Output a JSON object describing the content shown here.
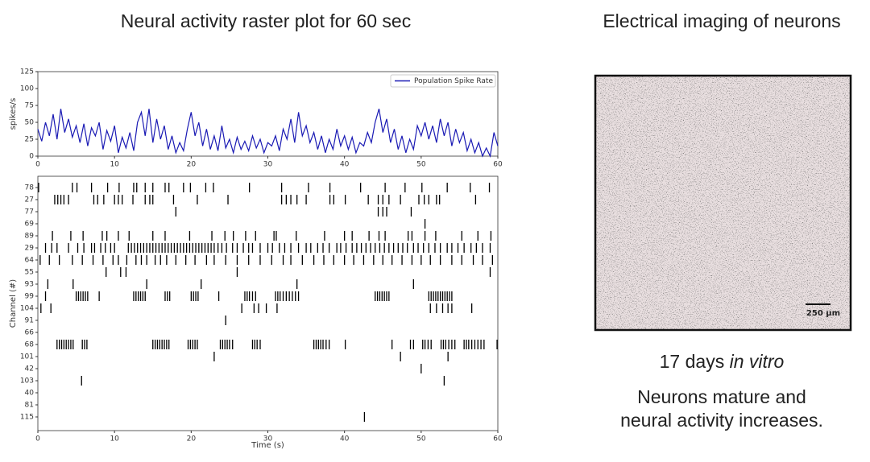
{
  "slide": {
    "left_title": "Neural activity raster plot for 60 sec",
    "right_title": "Electrical imaging of neurons",
    "caption_days": "17 days",
    "caption_italic": "in vitro",
    "note": [
      "Neurons mature and",
      "neural activity increases."
    ],
    "scale_bar": "250 μm"
  },
  "chart_data": [
    {
      "type": "line",
      "ylabel": "spikes/s",
      "legend": "upper right",
      "xlim": [
        0,
        60
      ],
      "ylim": [
        0,
        125
      ],
      "xticks": [
        0,
        10,
        20,
        30,
        40,
        50,
        60
      ],
      "yticks": [
        0,
        25,
        50,
        75,
        100,
        125
      ],
      "x": [
        0,
        0.5,
        1,
        1.5,
        2,
        2.5,
        3,
        3.5,
        4,
        4.5,
        5,
        5.5,
        6,
        6.5,
        7,
        7.5,
        8,
        8.5,
        9,
        9.5,
        10,
        10.5,
        11,
        11.5,
        12,
        12.5,
        13,
        13.5,
        14,
        14.5,
        15,
        15.5,
        16,
        16.5,
        17,
        17.5,
        18,
        18.5,
        19,
        19.5,
        20,
        20.5,
        21,
        21.5,
        22,
        22.5,
        23,
        23.5,
        24,
        24.5,
        25,
        25.5,
        26,
        26.5,
        27,
        27.5,
        28,
        28.5,
        29,
        29.5,
        30,
        30.5,
        31,
        31.5,
        32,
        32.5,
        33,
        33.5,
        34,
        34.5,
        35,
        35.5,
        36,
        36.5,
        37,
        37.5,
        38,
        38.5,
        39,
        39.5,
        40,
        40.5,
        41,
        41.5,
        42,
        42.5,
        43,
        43.5,
        44,
        44.5,
        45,
        45.5,
        46,
        46.5,
        47,
        47.5,
        48,
        48.5,
        49,
        49.5,
        50,
        50.5,
        51,
        51.5,
        52,
        52.5,
        53,
        53.5,
        54,
        54.5,
        55,
        55.5,
        56,
        56.5,
        57,
        57.5,
        58,
        58.5,
        59,
        59.5,
        60
      ],
      "series": [
        {
          "name": "Population Spike Rate",
          "color": "#1a1ab4",
          "values": [
            40,
            22,
            50,
            30,
            62,
            25,
            70,
            35,
            55,
            28,
            45,
            20,
            48,
            15,
            42,
            30,
            50,
            10,
            38,
            22,
            45,
            5,
            28,
            12,
            35,
            8,
            50,
            65,
            30,
            70,
            20,
            55,
            25,
            45,
            10,
            30,
            5,
            20,
            8,
            40,
            65,
            30,
            50,
            15,
            40,
            10,
            30,
            8,
            45,
            12,
            25,
            5,
            28,
            10,
            22,
            8,
            30,
            12,
            25,
            5,
            20,
            15,
            30,
            8,
            40,
            25,
            55,
            20,
            65,
            30,
            45,
            20,
            35,
            10,
            30,
            5,
            25,
            10,
            40,
            15,
            30,
            10,
            28,
            5,
            20,
            15,
            35,
            20,
            50,
            70,
            35,
            55,
            20,
            40,
            10,
            30,
            5,
            25,
            10,
            45,
            30,
            50,
            25,
            45,
            20,
            55,
            30,
            50,
            15,
            40,
            20,
            35,
            8,
            25,
            5,
            20,
            0,
            12,
            0,
            35,
            15
          ]
        }
      ]
    },
    {
      "type": "raster",
      "xlabel": "Time (s)",
      "ylabel": "Channel (#)",
      "xlim": [
        0,
        60
      ],
      "xticks": [
        0,
        10,
        20,
        30,
        40,
        50,
        60
      ],
      "color": "#000000",
      "series": [
        {
          "name": "78",
          "values": [
            0.1,
            4.5,
            5.1,
            7.0,
            9.1,
            10.6,
            12.5,
            12.9,
            14.0,
            15.0,
            16.6,
            17.1,
            19.0,
            19.9,
            21.9,
            22.9,
            27.6,
            31.8,
            35.3,
            38.1,
            42.1,
            45.3,
            47.9,
            50.1,
            53.4,
            56.4,
            58.9
          ]
        },
        {
          "name": "27",
          "values": [
            2.2,
            2.6,
            3.0,
            3.4,
            4.0,
            7.3,
            7.8,
            8.6,
            10.0,
            10.5,
            11.0,
            12.4,
            14.0,
            14.6,
            15.0,
            17.7,
            20.8,
            24.8,
            31.8,
            32.4,
            33.0,
            33.8,
            35.0,
            38.1,
            38.6,
            40.1,
            43.1,
            44.4,
            45.0,
            45.8,
            47.3,
            49.7,
            50.4,
            51.0,
            52.0,
            52.4,
            57.1
          ]
        },
        {
          "name": "77",
          "values": [
            18.0,
            44.4,
            45.0,
            45.5,
            48.7
          ]
        },
        {
          "name": "69",
          "values": [
            50.5
          ]
        },
        {
          "name": "89",
          "values": [
            1.9,
            4.3,
            5.9,
            8.4,
            9.0,
            10.5,
            11.9,
            15.0,
            16.6,
            19.8,
            22.7,
            24.4,
            25.5,
            27.1,
            28.4,
            30.8,
            31.1,
            33.7,
            37.4,
            40.0,
            41.0,
            43.2,
            44.5,
            45.3,
            48.3,
            48.8,
            50.5,
            51.9,
            55.3,
            57.4,
            59.1
          ]
        },
        {
          "name": "29",
          "values": [
            1.0,
            1.8,
            2.5,
            4.0,
            5.2,
            6.0,
            7.0,
            7.4,
            8.2,
            8.8,
            9.5,
            10.0,
            11.8,
            12.2,
            12.6,
            13.0,
            13.4,
            13.8,
            14.2,
            14.6,
            15.0,
            15.4,
            15.8,
            16.2,
            16.6,
            17.0,
            17.4,
            17.8,
            18.2,
            18.6,
            19.0,
            19.4,
            19.8,
            20.2,
            20.6,
            21.0,
            21.4,
            21.8,
            22.2,
            22.6,
            23.0,
            23.5,
            24.0,
            24.6,
            25.4,
            26.0,
            26.8,
            27.5,
            28.0,
            29.0,
            30.0,
            30.6,
            31.5,
            32.2,
            33.0,
            34.0,
            35.0,
            35.6,
            36.5,
            37.2,
            38.0,
            39.0,
            39.5,
            40.2,
            41.0,
            41.6,
            42.2,
            42.8,
            43.4,
            44.0,
            44.6,
            45.2,
            45.8,
            46.4,
            47.0,
            47.6,
            48.2,
            49.0,
            49.6,
            50.3,
            51.0,
            51.8,
            52.5,
            53.4,
            54.0,
            54.8,
            55.6,
            56.5,
            57.2,
            58.0,
            59.0
          ]
        },
        {
          "name": "64",
          "values": [
            0.3,
            1.5,
            2.8,
            4.5,
            5.8,
            7.2,
            8.5,
            9.8,
            10.5,
            11.6,
            12.8,
            13.5,
            14.2,
            15.3,
            16.0,
            16.8,
            18.0,
            19.3,
            20.5,
            22.0,
            23.0,
            24.5,
            26.0,
            27.5,
            29.0,
            30.5,
            32.0,
            33.0,
            34.5,
            36.0,
            37.3,
            38.6,
            40.0,
            41.2,
            42.5,
            43.8,
            45.0,
            46.2,
            47.5,
            48.8,
            50.0,
            51.2,
            52.5,
            54.0,
            55.3,
            56.8,
            58.0,
            59.3
          ]
        },
        {
          "name": "55",
          "values": [
            8.9,
            10.8,
            11.5,
            26.0,
            59.0
          ]
        },
        {
          "name": "93",
          "values": [
            1.3,
            4.6,
            14.2,
            21.3,
            33.8,
            49.0
          ]
        },
        {
          "name": "99",
          "values": [
            1.0,
            5.0,
            5.3,
            5.6,
            5.9,
            6.2,
            6.5,
            8.0,
            12.5,
            12.8,
            13.1,
            13.4,
            13.7,
            14.0,
            16.6,
            16.9,
            17.2,
            20.0,
            20.3,
            20.6,
            20.9,
            23.6,
            27.0,
            27.3,
            27.6,
            28.0,
            28.4,
            31.0,
            31.3,
            31.6,
            32.0,
            32.4,
            32.8,
            33.2,
            33.6,
            34.0,
            44.0,
            44.3,
            44.6,
            44.9,
            45.2,
            45.5,
            45.8,
            51.0,
            51.3,
            51.6,
            51.9,
            52.2,
            52.5,
            52.8,
            53.1,
            53.4,
            53.7,
            54.0
          ]
        },
        {
          "name": "104",
          "values": [
            0.4,
            1.7,
            26.6,
            28.2,
            28.8,
            29.8,
            31.2,
            51.2,
            52.0,
            52.8,
            53.5,
            54.0,
            56.6
          ]
        },
        {
          "name": "91",
          "values": [
            24.5
          ]
        },
        {
          "name": "66",
          "values": []
        },
        {
          "name": "68",
          "values": [
            2.5,
            2.8,
            3.1,
            3.4,
            3.7,
            4.0,
            4.3,
            4.6,
            5.8,
            6.1,
            6.4,
            15.0,
            15.3,
            15.6,
            15.9,
            16.2,
            16.5,
            16.8,
            17.1,
            19.6,
            19.9,
            20.2,
            20.5,
            20.8,
            23.8,
            24.1,
            24.4,
            24.7,
            25.0,
            25.4,
            28.0,
            28.3,
            28.6,
            29.0,
            36.0,
            36.3,
            36.6,
            36.9,
            37.2,
            37.6,
            38.0,
            40.1,
            46.2,
            48.6,
            49.0,
            50.2,
            50.5,
            50.9,
            51.3,
            52.6,
            52.9,
            53.2,
            53.6,
            54.0,
            54.4,
            55.6,
            55.9,
            56.2,
            56.6,
            57.0,
            57.4,
            57.8,
            58.2,
            59.9
          ]
        },
        {
          "name": "101",
          "values": [
            23.0,
            47.3,
            53.5
          ]
        },
        {
          "name": "42",
          "values": [
            50.0
          ]
        },
        {
          "name": "103",
          "values": [
            5.7,
            53.0
          ]
        },
        {
          "name": "40",
          "values": []
        },
        {
          "name": "81",
          "values": []
        },
        {
          "name": "115",
          "values": [
            42.6
          ]
        }
      ]
    }
  ]
}
